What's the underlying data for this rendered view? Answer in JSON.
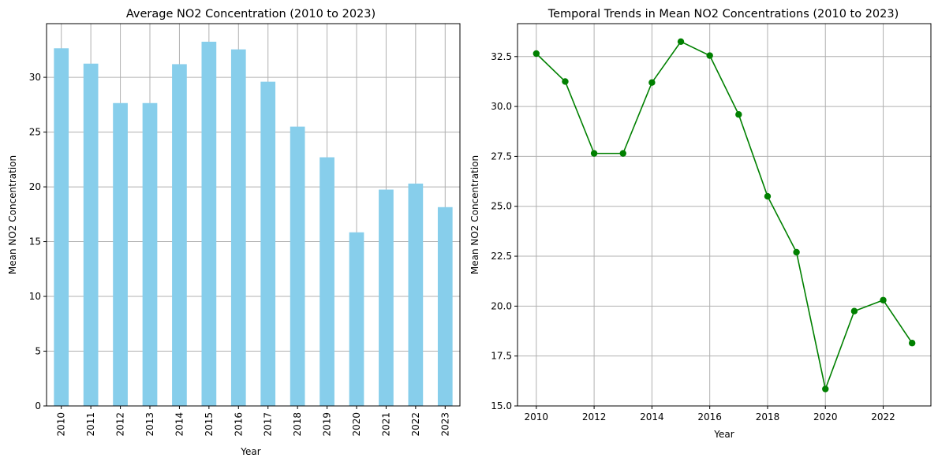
{
  "colors": {
    "bar_fill": "#87ceeb",
    "line_color": "#008000",
    "grid": "#b0b0b0",
    "axis": "#000000"
  },
  "chart_data": [
    {
      "type": "bar",
      "title": "Average NO2 Concentration (2010 to 2023)",
      "xlabel": "Year",
      "ylabel": "Mean NO2 Concentration",
      "categories": [
        "2010",
        "2011",
        "2012",
        "2013",
        "2014",
        "2015",
        "2016",
        "2017",
        "2018",
        "2019",
        "2020",
        "2021",
        "2022",
        "2023"
      ],
      "values": [
        32.65,
        31.25,
        27.65,
        27.65,
        31.2,
        33.25,
        32.55,
        29.6,
        25.5,
        22.7,
        15.85,
        19.75,
        20.3,
        18.15
      ],
      "ylim": [
        0,
        34.9
      ],
      "yticks": [
        0,
        5,
        10,
        15,
        20,
        25,
        30
      ],
      "ytick_labels": [
        "0",
        "5",
        "10",
        "15",
        "20",
        "25",
        "30"
      ],
      "grid": true,
      "xtick_rotation": "vertical"
    },
    {
      "type": "line",
      "title": "Temporal Trends in Mean NO2 Concentrations (2010 to 2023)",
      "xlabel": "Year",
      "ylabel": "Mean NO2 Concentration",
      "x": [
        2010,
        2011,
        2012,
        2013,
        2014,
        2015,
        2016,
        2017,
        2018,
        2019,
        2020,
        2021,
        2022,
        2023
      ],
      "y": [
        32.65,
        31.25,
        27.65,
        27.65,
        31.2,
        33.25,
        32.55,
        29.6,
        25.5,
        22.7,
        15.85,
        19.75,
        20.3,
        18.15
      ],
      "xlim": [
        2009.35,
        2023.65
      ],
      "ylim": [
        15.0,
        34.15
      ],
      "xticks": [
        2010,
        2012,
        2014,
        2016,
        2018,
        2020,
        2022
      ],
      "xtick_labels": [
        "2010",
        "2012",
        "2014",
        "2016",
        "2018",
        "2020",
        "2022"
      ],
      "yticks": [
        15.0,
        17.5,
        20.0,
        22.5,
        25.0,
        27.5,
        30.0,
        32.5
      ],
      "ytick_labels": [
        "15.0",
        "17.5",
        "20.0",
        "22.5",
        "25.0",
        "27.5",
        "30.0",
        "32.5"
      ],
      "marker": "circle",
      "grid": true
    }
  ]
}
